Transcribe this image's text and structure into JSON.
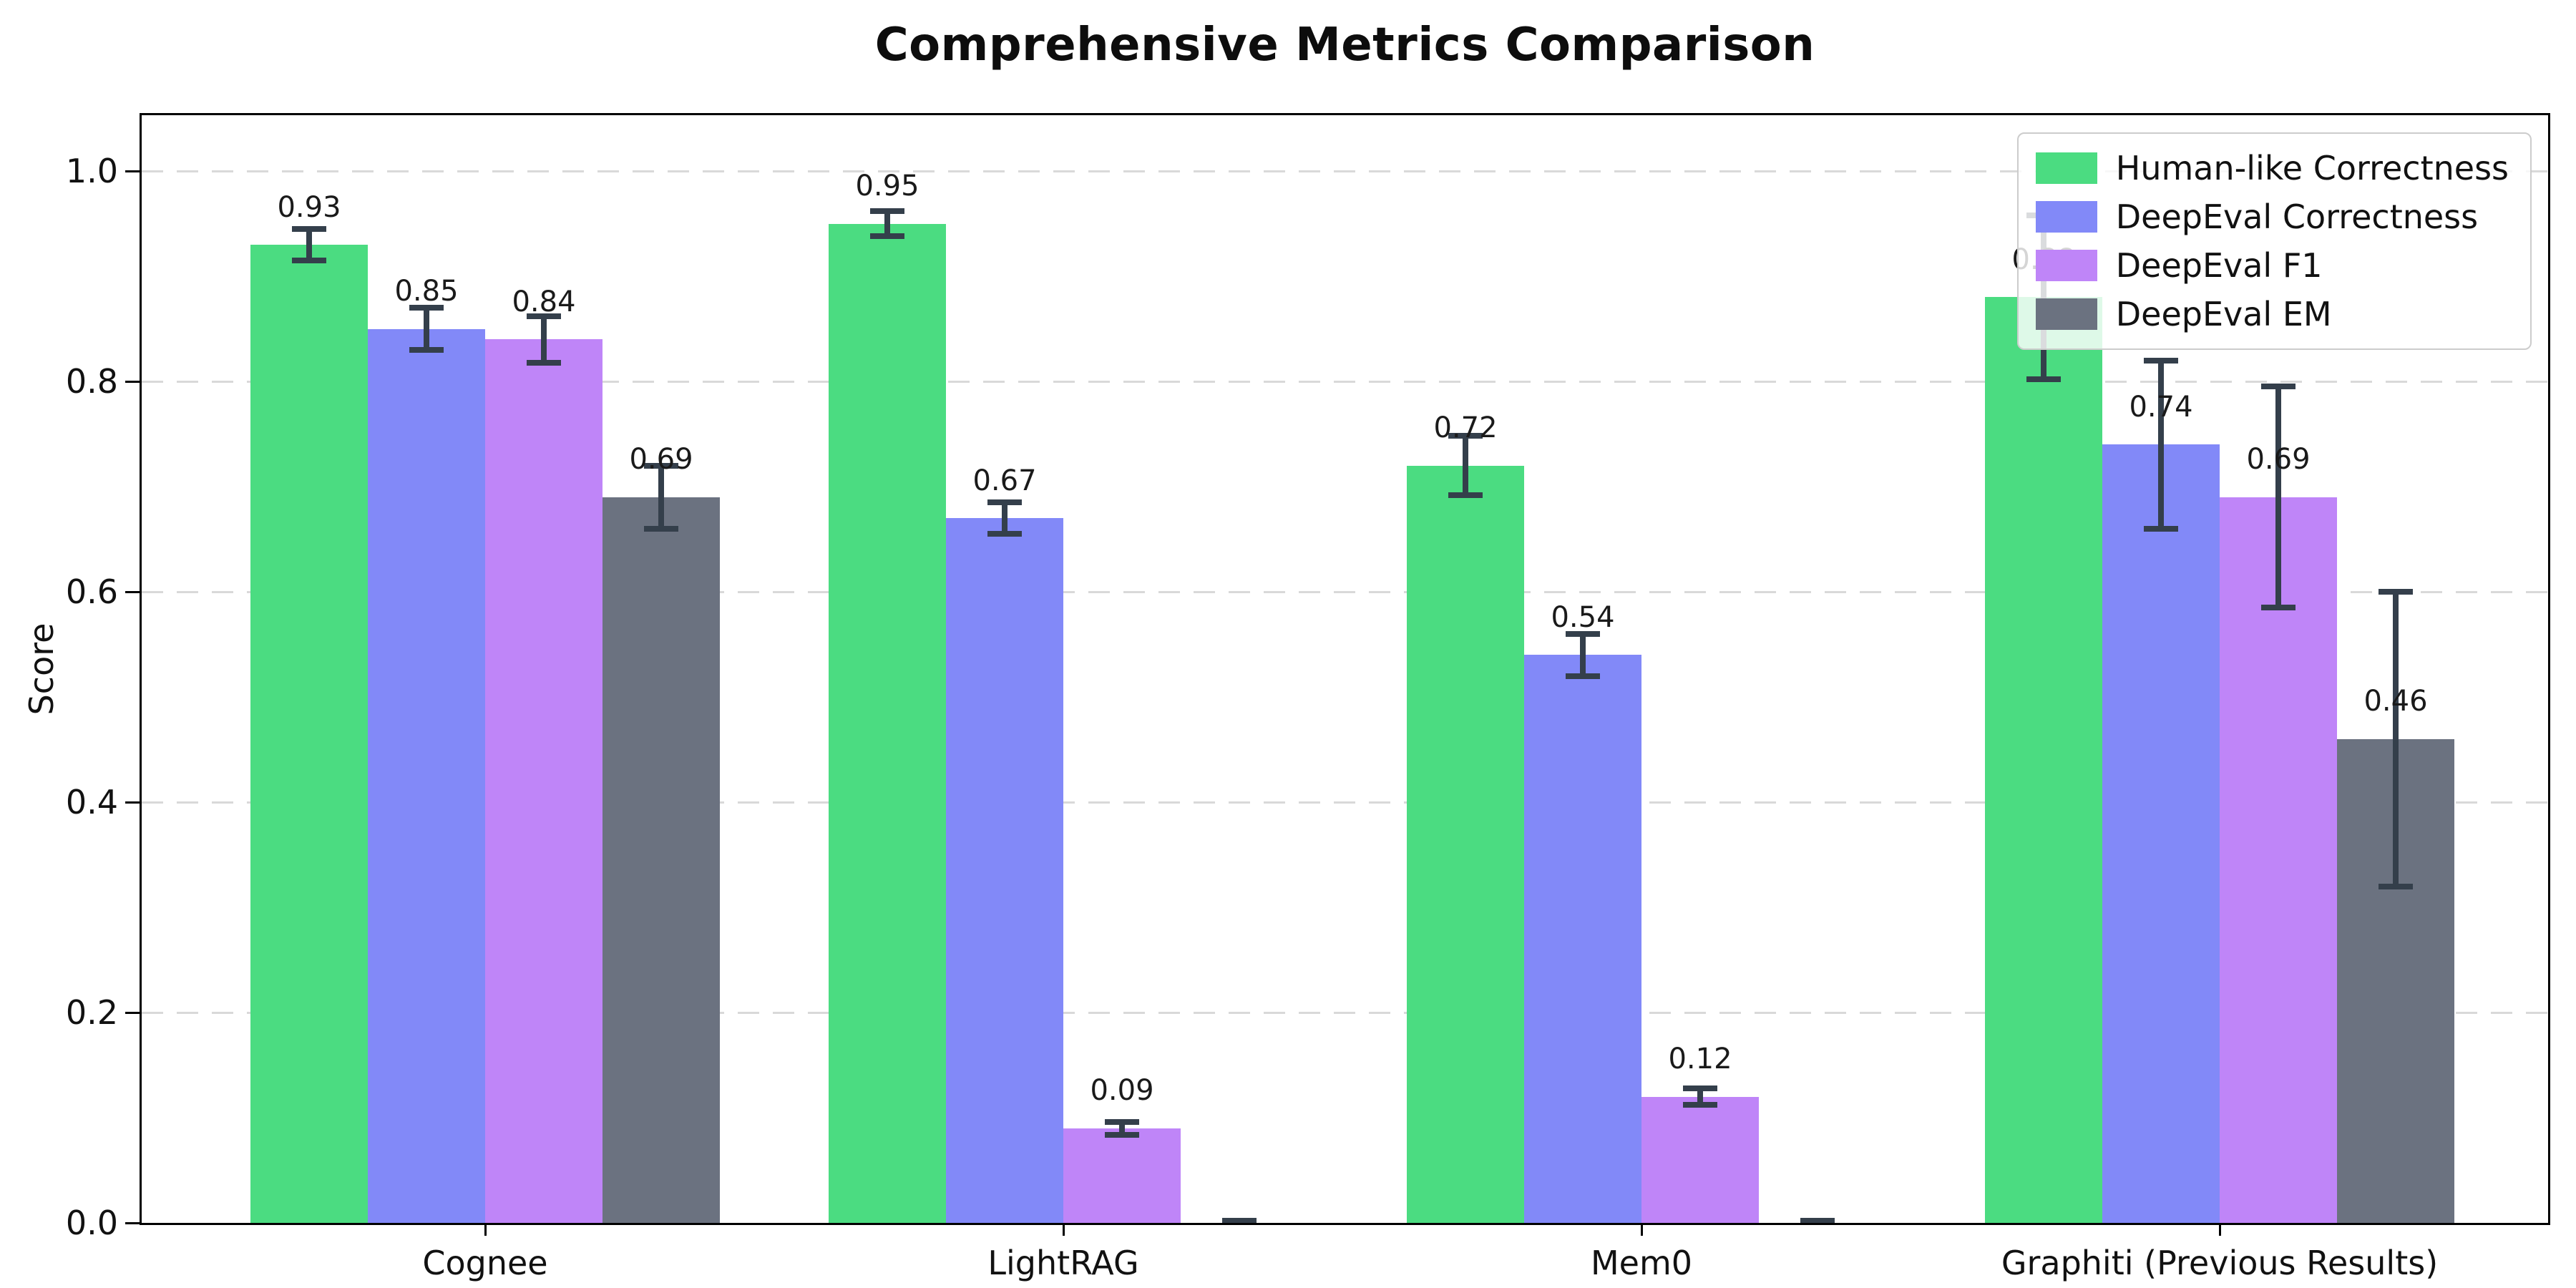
{
  "figure": {
    "title": "Comprehensive Metrics Comparison"
  },
  "chart_data": {
    "type": "bar",
    "title": "Comprehensive Metrics Comparison",
    "xlabel": "",
    "ylabel": "Score",
    "categories": [
      "Cognee",
      "LightRAG",
      "Mem0",
      "Graphiti (Previous Results)"
    ],
    "series": [
      {
        "name": "Human-like Correctness",
        "color": "#4BDC81",
        "values": [
          0.93,
          0.95,
          0.72,
          0.88
        ],
        "errors": [
          0.015,
          0.012,
          0.028,
          0.078
        ],
        "labels": [
          "0.93",
          "0.95",
          "0.72",
          "0.88"
        ]
      },
      {
        "name": "DeepEval Correctness",
        "color": "#8289F8",
        "values": [
          0.85,
          0.67,
          0.54,
          0.74
        ],
        "errors": [
          0.02,
          0.015,
          0.02,
          0.08
        ],
        "labels": [
          "0.85",
          "0.67",
          "0.54",
          "0.74"
        ]
      },
      {
        "name": "DeepEval F1",
        "color": "#BF85F8",
        "values": [
          0.84,
          0.09,
          0.12,
          0.69
        ],
        "errors": [
          0.022,
          0.006,
          0.008,
          0.105
        ],
        "labels": [
          "0.84",
          "0.09",
          "0.12",
          "0.69"
        ]
      },
      {
        "name": "DeepEval EM",
        "color": "#6B7280",
        "values": [
          0.69,
          0.0,
          0.0,
          0.46
        ],
        "errors": [
          0.03,
          0.002,
          0.002,
          0.14
        ],
        "labels": [
          "0.69",
          "",
          "",
          "0.46"
        ]
      }
    ],
    "ylim": [
      0.0,
      1.05
    ],
    "yticks": [
      "0.0",
      "0.2",
      "0.4",
      "0.6",
      "0.8",
      "1.0"
    ],
    "grid": "dashed-horizontal",
    "legend_position": "upper-right",
    "error_bar_color": "#343F4B"
  }
}
